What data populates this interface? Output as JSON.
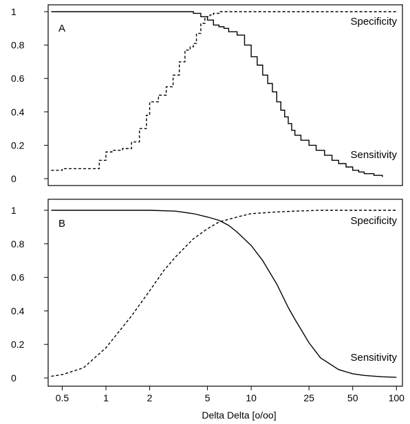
{
  "chart_data": [
    {
      "type": "line",
      "panel_label": "A",
      "x_scale": "log",
      "xlim": [
        0.4,
        110
      ],
      "ylim": [
        0,
        1
      ],
      "y_ticks": [
        0,
        0.2,
        0.4,
        0.6,
        0.8,
        1
      ],
      "y_tick_labels": [
        "0",
        "0.2",
        "0.4",
        "0.6",
        "0.8",
        "1"
      ],
      "series": [
        {
          "name": "Specificity",
          "line_style": "dashed",
          "step": true,
          "x": [
            0.42,
            0.47,
            0.5,
            0.6,
            0.8,
            0.9,
            1.0,
            1.1,
            1.3,
            1.5,
            1.7,
            1.9,
            2.0,
            2.3,
            2.6,
            2.9,
            3.2,
            3.5,
            3.8,
            4.0,
            4.2,
            4.5,
            4.8,
            5.0,
            5.2,
            5.5,
            6.0,
            7.0,
            10,
            20,
            50,
            100
          ],
          "y": [
            0.05,
            0.05,
            0.06,
            0.06,
            0.06,
            0.11,
            0.16,
            0.17,
            0.18,
            0.22,
            0.3,
            0.38,
            0.46,
            0.5,
            0.55,
            0.62,
            0.7,
            0.77,
            0.79,
            0.81,
            0.87,
            0.93,
            0.96,
            0.97,
            0.98,
            0.99,
            1.0,
            1.0,
            1.0,
            1.0,
            1.0,
            1.0
          ]
        },
        {
          "name": "Sensitivity",
          "line_style": "solid",
          "step": true,
          "x": [
            0.42,
            1,
            2,
            3.5,
            4.0,
            4.5,
            5.0,
            5.5,
            6.0,
            6.5,
            7.0,
            8.0,
            9.0,
            10,
            11,
            12,
            13,
            14,
            15,
            16,
            17,
            18,
            19,
            20,
            22,
            25,
            28,
            32,
            36,
            40,
            45,
            50,
            55,
            60,
            70,
            80
          ],
          "y": [
            1.0,
            1.0,
            1.0,
            1.0,
            0.99,
            0.97,
            0.95,
            0.92,
            0.91,
            0.9,
            0.88,
            0.86,
            0.8,
            0.73,
            0.68,
            0.62,
            0.57,
            0.52,
            0.46,
            0.41,
            0.37,
            0.33,
            0.29,
            0.26,
            0.23,
            0.2,
            0.17,
            0.14,
            0.11,
            0.09,
            0.07,
            0.05,
            0.04,
            0.03,
            0.02,
            0.01
          ]
        }
      ]
    },
    {
      "type": "line",
      "panel_label": "B",
      "x_scale": "log",
      "xlim": [
        0.4,
        110
      ],
      "ylim": [
        0,
        1
      ],
      "xlabel": "Delta Delta [o/oo]",
      "x_ticks": [
        0.5,
        1,
        2,
        5,
        10,
        25,
        50,
        100
      ],
      "x_tick_labels": [
        "0.5",
        "1",
        "2",
        "5",
        "10",
        "25",
        "50",
        "100"
      ],
      "y_ticks": [
        0,
        0.2,
        0.4,
        0.6,
        0.8,
        1
      ],
      "y_tick_labels": [
        "0",
        "0.2",
        "0.4",
        "0.6",
        "0.8",
        "1"
      ],
      "series": [
        {
          "name": "Specificity",
          "line_style": "dashed",
          "x": [
            0.42,
            0.5,
            0.7,
            1.0,
            1.5,
            2.0,
            2.5,
            3.0,
            4.0,
            5.0,
            6.0,
            8.0,
            10,
            15,
            20,
            30,
            50,
            100
          ],
          "y": [
            0.01,
            0.02,
            0.06,
            0.18,
            0.37,
            0.52,
            0.64,
            0.72,
            0.83,
            0.89,
            0.93,
            0.96,
            0.98,
            0.99,
            0.995,
            1.0,
            1.0,
            1.0
          ]
        },
        {
          "name": "Sensitivity",
          "line_style": "solid",
          "x": [
            0.42,
            1.0,
            2.0,
            3.0,
            4.0,
            5.0,
            6.0,
            7.0,
            8.0,
            10,
            12,
            15,
            18,
            20,
            25,
            30,
            40,
            50,
            60,
            80,
            100
          ],
          "y": [
            1.0,
            1.0,
            1.0,
            0.995,
            0.98,
            0.96,
            0.94,
            0.91,
            0.87,
            0.79,
            0.7,
            0.56,
            0.42,
            0.35,
            0.21,
            0.12,
            0.05,
            0.025,
            0.015,
            0.007,
            0.004
          ]
        }
      ]
    }
  ]
}
